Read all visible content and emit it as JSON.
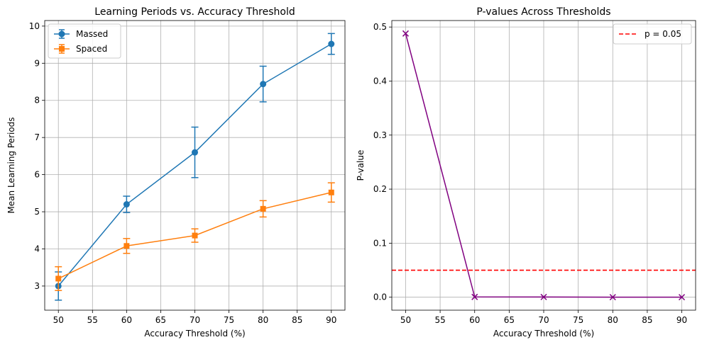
{
  "chart_data": [
    {
      "type": "line",
      "title": "Learning Periods vs. Accuracy Threshold",
      "xlabel": "Accuracy Threshold (%)",
      "ylabel": "Mean Learning Periods",
      "x": [
        50,
        60,
        70,
        80,
        90
      ],
      "xlim": [
        48,
        92
      ],
      "ylim": [
        2.35,
        10.15
      ],
      "xticks": [
        50,
        55,
        60,
        65,
        70,
        75,
        80,
        85,
        90
      ],
      "yticks": [
        3,
        4,
        5,
        6,
        7,
        8,
        9,
        10
      ],
      "grid": true,
      "legend_position": "top-left",
      "series": [
        {
          "name": "Massed",
          "color": "#1f77b4",
          "marker": "circle",
          "values": [
            3.0,
            5.2,
            6.6,
            8.44,
            9.52
          ],
          "error": [
            0.38,
            0.22,
            0.68,
            0.48,
            0.28
          ]
        },
        {
          "name": "Spaced",
          "color": "#ff7f0e",
          "marker": "square",
          "values": [
            3.2,
            4.08,
            4.36,
            5.08,
            5.52
          ],
          "error": [
            0.32,
            0.2,
            0.18,
            0.22,
            0.26
          ]
        }
      ]
    },
    {
      "type": "line",
      "title": "P-values Across Thresholds",
      "xlabel": "Accuracy Threshold (%)",
      "ylabel": "P-value",
      "x": [
        50,
        60,
        70,
        80,
        90
      ],
      "xlim": [
        48,
        92
      ],
      "ylim": [
        -0.024,
        0.512
      ],
      "xticks": [
        50,
        55,
        60,
        65,
        70,
        75,
        80,
        85,
        90
      ],
      "yticks": [
        0.0,
        0.1,
        0.2,
        0.3,
        0.4,
        0.5
      ],
      "grid": true,
      "legend_position": "top-right",
      "series": [
        {
          "color": "#800080",
          "marker": "x",
          "values": [
            0.488,
            0.0005,
            0.0004,
            0.0001,
            0.0001
          ]
        }
      ],
      "reference_line": {
        "name": "p = 0.05",
        "y": 0.05,
        "color": "#ff0000",
        "style": "dashed"
      }
    }
  ]
}
